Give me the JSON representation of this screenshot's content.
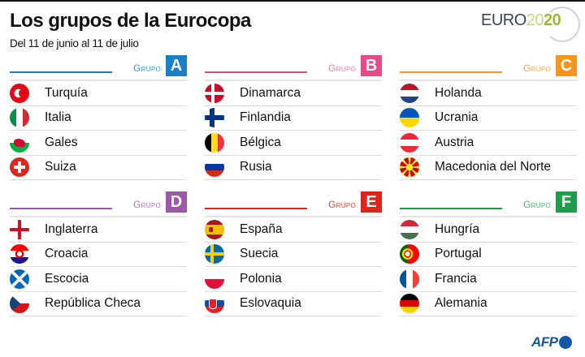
{
  "title": "Los grupos de la Eurocopa",
  "subtitle": "Del 11 de junio al 11 de julio",
  "logo": {
    "euro": "EURO",
    "y1": "20",
    "y2": "20"
  },
  "group_label": "Grupo",
  "groups": [
    {
      "letter": "A",
      "color": "#1a7fc4",
      "label_color": "#3a9ad6",
      "teams": [
        {
          "name": "Turquía",
          "flag": "tr"
        },
        {
          "name": "Italia",
          "flag": "it"
        },
        {
          "name": "Gales",
          "flag": "wa"
        },
        {
          "name": "Suiza",
          "flag": "ch"
        }
      ]
    },
    {
      "letter": "B",
      "color": "#e84a84",
      "label_color": "#ef7ea6",
      "teams": [
        {
          "name": "Dinamarca",
          "flag": "dk"
        },
        {
          "name": "Finlandia",
          "flag": "fi"
        },
        {
          "name": "Bélgica",
          "flag": "be"
        },
        {
          "name": "Rusia",
          "flag": "ru"
        }
      ]
    },
    {
      "letter": "C",
      "color": "#f7941d",
      "label_color": "#f8a84a",
      "teams": [
        {
          "name": "Holanda",
          "flag": "nl"
        },
        {
          "name": "Ucrania",
          "flag": "ua"
        },
        {
          "name": "Austria",
          "flag": "at"
        },
        {
          "name": "Macedonia del Norte",
          "flag": "mk"
        }
      ]
    },
    {
      "letter": "D",
      "color": "#9b5aa8",
      "label_color": "#a978b4",
      "teams": [
        {
          "name": "Inglaterra",
          "flag": "en"
        },
        {
          "name": "Croacia",
          "flag": "hr"
        },
        {
          "name": "Escocia",
          "flag": "sc"
        },
        {
          "name": "República Checa",
          "flag": "cz"
        }
      ]
    },
    {
      "letter": "E",
      "color": "#e2231a",
      "label_color": "#e6463f",
      "teams": [
        {
          "name": "España",
          "flag": "es"
        },
        {
          "name": "Suecia",
          "flag": "se"
        },
        {
          "name": "Polonia",
          "flag": "pl"
        },
        {
          "name": "Eslovaquia",
          "flag": "sk"
        }
      ]
    },
    {
      "letter": "F",
      "color": "#1e9e4a",
      "label_color": "#4db574",
      "teams": [
        {
          "name": "Hungría",
          "flag": "hu"
        },
        {
          "name": "Portugal",
          "flag": "pt"
        },
        {
          "name": "Francia",
          "flag": "fr"
        },
        {
          "name": "Alemania",
          "flag": "de"
        }
      ]
    }
  ],
  "credit": "AFP"
}
